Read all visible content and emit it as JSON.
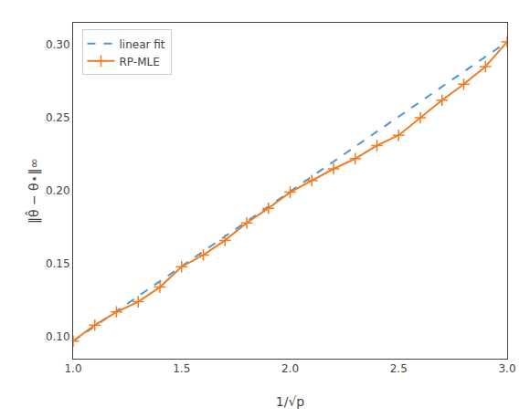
{
  "chart_data": {
    "type": "line",
    "xlabel": "1/√p",
    "ylabel": "‖θ̂ − θ⋆‖∞",
    "xlim": [
      1.0,
      3.0
    ],
    "ylim": [
      0.085,
      0.315
    ],
    "xticks": [
      {
        "value": 1.0,
        "label": "1.0"
      },
      1.5,
      {
        "value": 2.0,
        "label": "2.0"
      },
      2.5,
      {
        "value": 3.0,
        "label": "3.0"
      }
    ],
    "yticks": [
      {
        "value": 0.1,
        "label": "0.10"
      },
      0.15,
      {
        "value": 0.2,
        "label": "0.20"
      },
      0.25,
      {
        "value": 0.3,
        "label": "0.30"
      }
    ],
    "grid": false,
    "legend": "upper left",
    "series": [
      {
        "name": "linear fit",
        "color": "#4c96d7",
        "line_style": "dashed",
        "x": [
          1.0,
          3.0
        ],
        "values": [
          0.097,
          0.302
        ]
      },
      {
        "name": "RP-MLE",
        "color": "#f07d22",
        "line_style": "solid",
        "marker": "plus",
        "x": [
          1.0,
          1.1,
          1.2,
          1.3,
          1.4,
          1.5,
          1.6,
          1.7,
          1.8,
          1.9,
          2.0,
          2.1,
          2.2,
          2.3,
          2.4,
          2.5,
          2.6,
          2.7,
          2.8,
          2.9,
          3.0
        ],
        "values": [
          0.097,
          0.108,
          0.117,
          0.124,
          0.134,
          0.148,
          0.156,
          0.166,
          0.178,
          0.188,
          0.199,
          0.207,
          0.215,
          0.222,
          0.231,
          0.238,
          0.25,
          0.262,
          0.273,
          0.285,
          0.302
        ]
      }
    ]
  }
}
